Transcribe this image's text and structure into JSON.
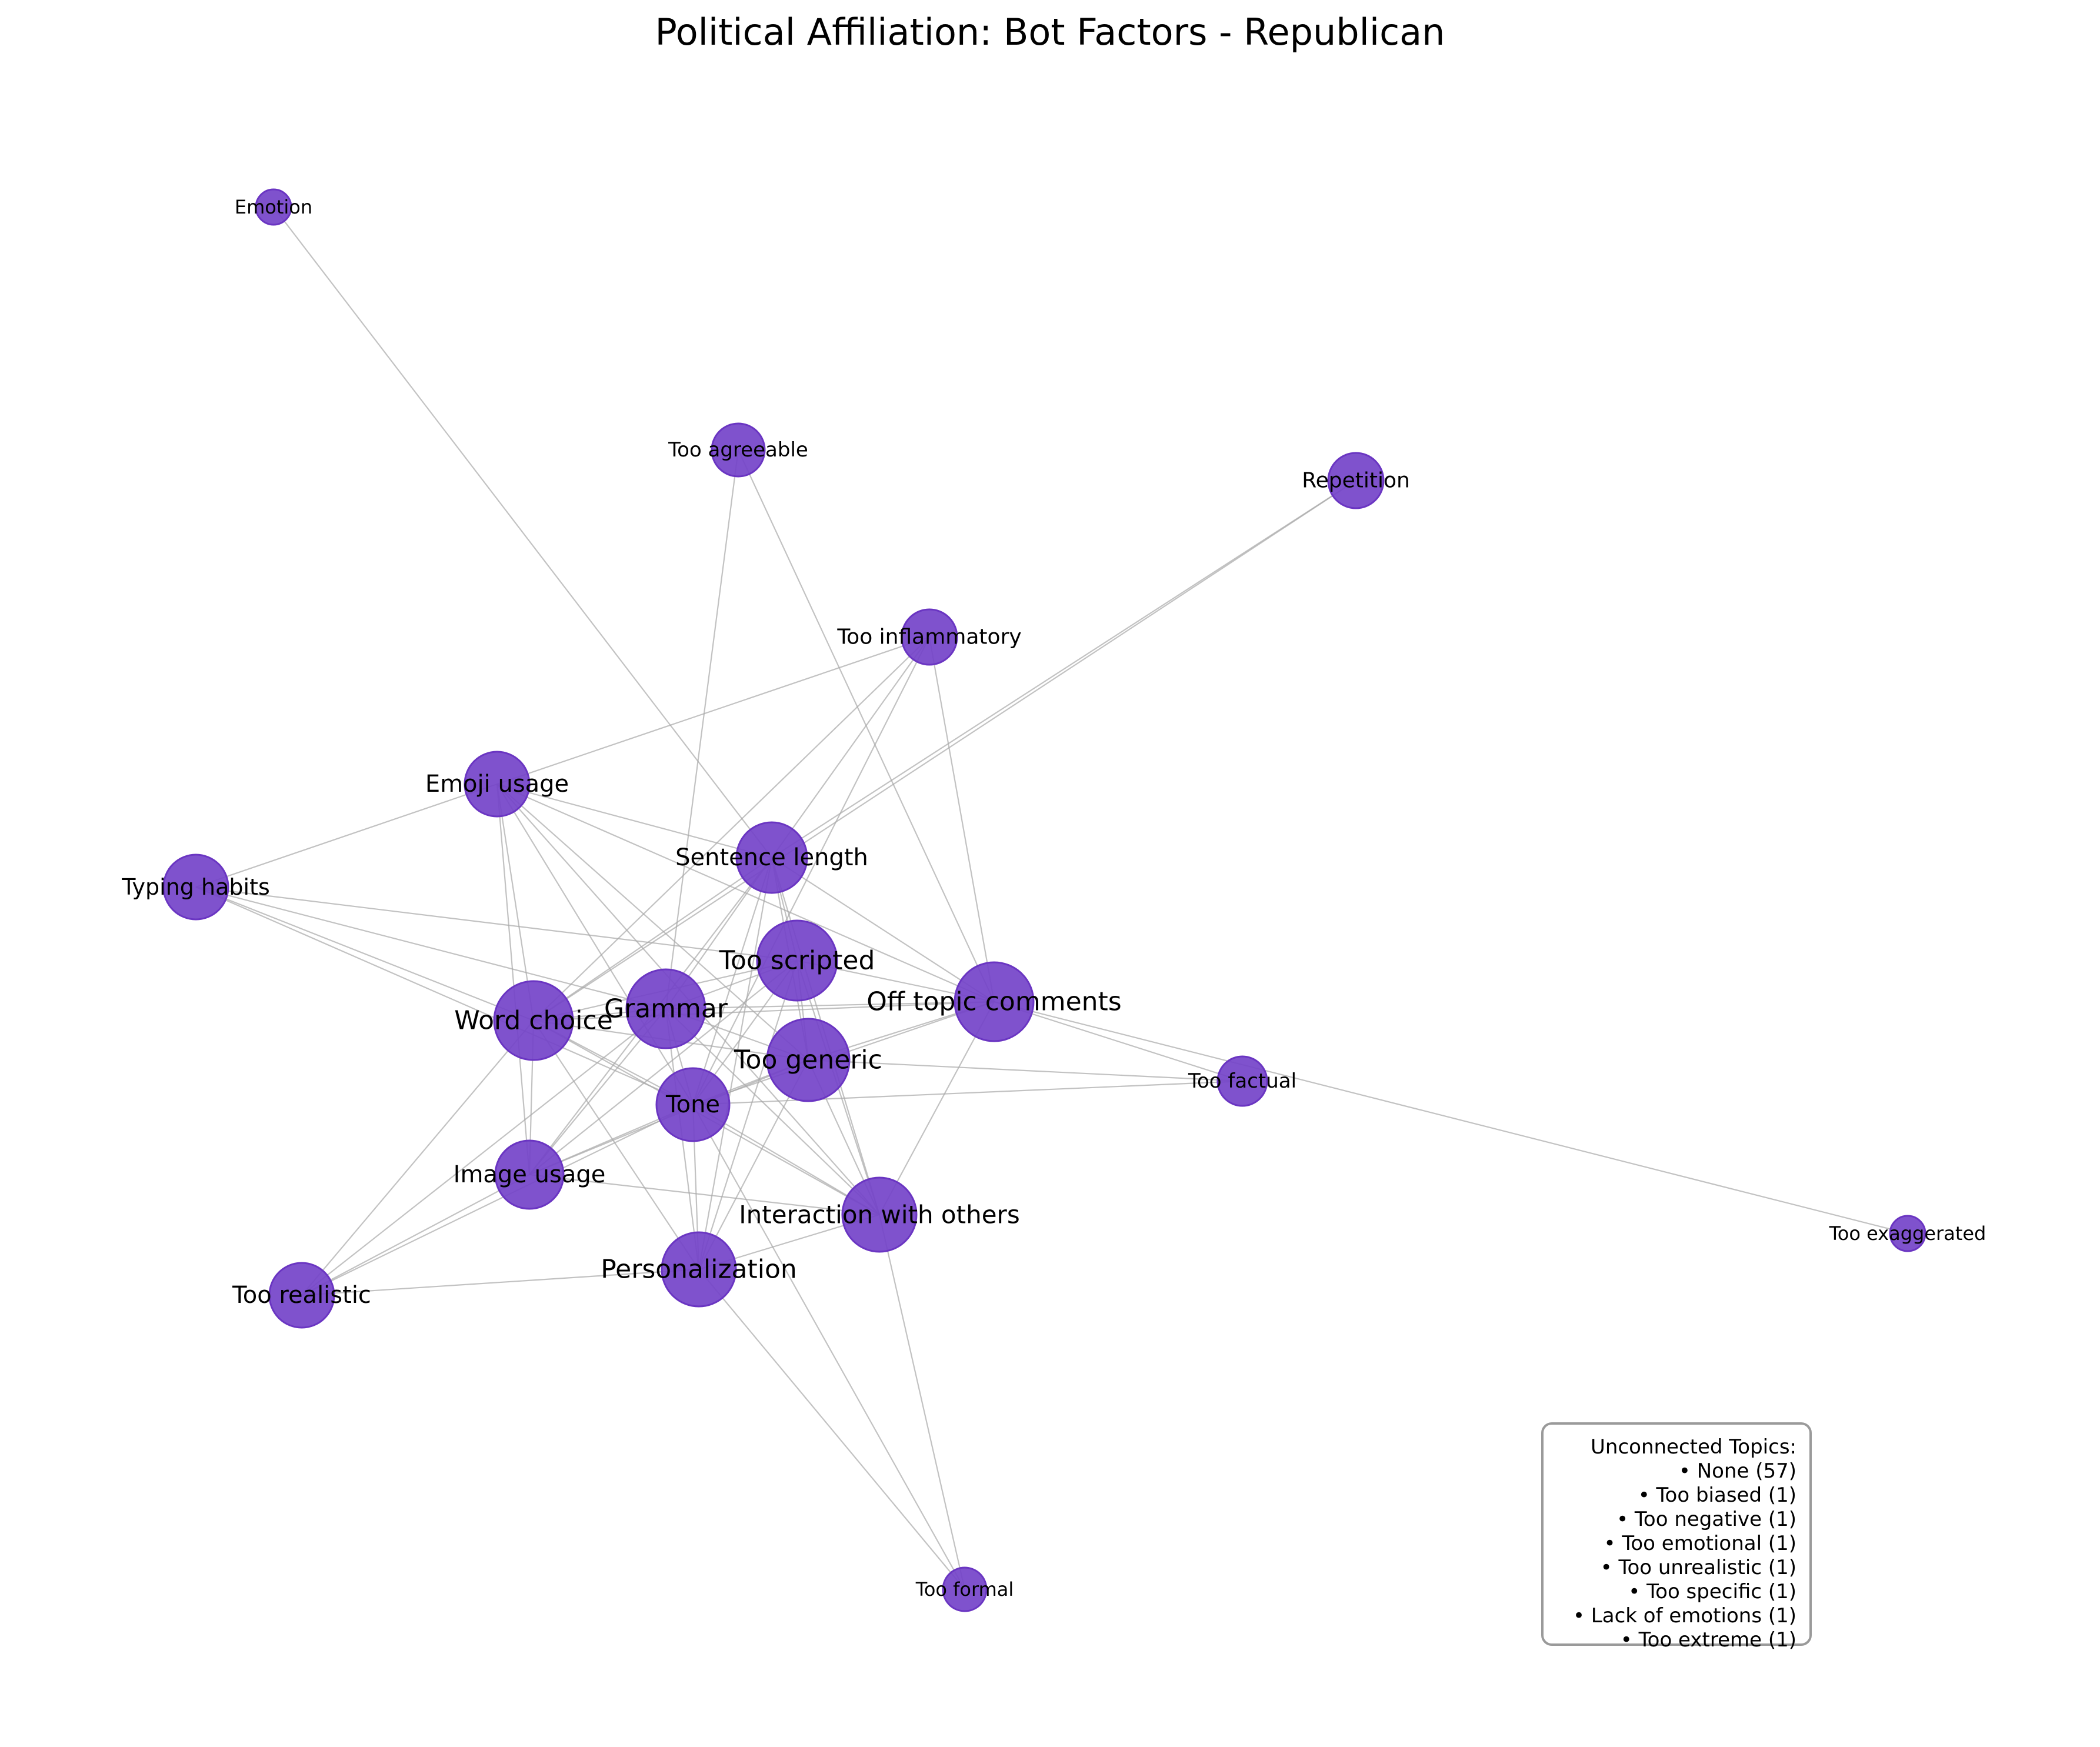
{
  "title": "Political Affiliation: Bot Factors - Republican",
  "node_color": "#7443c9",
  "node_stroke": "#6a35c2",
  "edge_color": "#a8a8a8",
  "nodes": [
    {
      "id": "emotion",
      "label": "Emotion"
    },
    {
      "id": "too_agreeable",
      "label": "Too agreeable"
    },
    {
      "id": "repetition",
      "label": "Repetition"
    },
    {
      "id": "too_inflammatory",
      "label": "Too inflammatory"
    },
    {
      "id": "emoji_usage",
      "label": "Emoji usage"
    },
    {
      "id": "sentence_length",
      "label": "Sentence length"
    },
    {
      "id": "typing_habits",
      "label": "Typing habits"
    },
    {
      "id": "too_scripted",
      "label": "Too scripted"
    },
    {
      "id": "grammar",
      "label": "Grammar"
    },
    {
      "id": "off_topic_comments",
      "label": "Off topic comments"
    },
    {
      "id": "word_choice",
      "label": "Word choice"
    },
    {
      "id": "too_generic",
      "label": "Too generic"
    },
    {
      "id": "too_factual",
      "label": "Too factual"
    },
    {
      "id": "tone",
      "label": "Tone"
    },
    {
      "id": "image_usage",
      "label": "Image usage"
    },
    {
      "id": "interaction_with_others",
      "label": "Interaction with others"
    },
    {
      "id": "too_exaggerated",
      "label": "Too exaggerated"
    },
    {
      "id": "personalization",
      "label": "Personalization"
    },
    {
      "id": "too_realistic",
      "label": "Too realistic"
    },
    {
      "id": "too_formal",
      "label": "Too formal"
    }
  ],
  "edges": [
    [
      "emotion",
      "sentence_length"
    ],
    [
      "too_agreeable",
      "grammar"
    ],
    [
      "too_agreeable",
      "off_topic_comments"
    ],
    [
      "repetition",
      "sentence_length"
    ],
    [
      "repetition",
      "word_choice"
    ],
    [
      "too_inflammatory",
      "emoji_usage"
    ],
    [
      "too_inflammatory",
      "sentence_length"
    ],
    [
      "too_inflammatory",
      "tone"
    ],
    [
      "too_inflammatory",
      "off_topic_comments"
    ],
    [
      "too_inflammatory",
      "word_choice"
    ],
    [
      "emoji_usage",
      "typing_habits"
    ],
    [
      "emoji_usage",
      "sentence_length"
    ],
    [
      "emoji_usage",
      "word_choice"
    ],
    [
      "emoji_usage",
      "image_usage"
    ],
    [
      "emoji_usage",
      "tone"
    ],
    [
      "emoji_usage",
      "too_generic"
    ],
    [
      "emoji_usage",
      "interaction_with_others"
    ],
    [
      "emoji_usage",
      "off_topic_comments"
    ],
    [
      "sentence_length",
      "too_scripted"
    ],
    [
      "sentence_length",
      "grammar"
    ],
    [
      "sentence_length",
      "too_generic"
    ],
    [
      "sentence_length",
      "tone"
    ],
    [
      "sentence_length",
      "word_choice"
    ],
    [
      "sentence_length",
      "off_topic_comments"
    ],
    [
      "sentence_length",
      "interaction_with_others"
    ],
    [
      "sentence_length",
      "image_usage"
    ],
    [
      "sentence_length",
      "personalization"
    ],
    [
      "typing_habits",
      "too_scripted"
    ],
    [
      "typing_habits",
      "word_choice"
    ],
    [
      "typing_habits",
      "tone"
    ],
    [
      "typing_habits",
      "grammar"
    ],
    [
      "too_scripted",
      "grammar"
    ],
    [
      "too_scripted",
      "off_topic_comments"
    ],
    [
      "too_scripted",
      "too_generic"
    ],
    [
      "too_scripted",
      "tone"
    ],
    [
      "too_scripted",
      "interaction_with_others"
    ],
    [
      "too_scripted",
      "word_choice"
    ],
    [
      "too_scripted",
      "personalization"
    ],
    [
      "too_scripted",
      "image_usage"
    ],
    [
      "grammar",
      "word_choice"
    ],
    [
      "grammar",
      "too_generic"
    ],
    [
      "grammar",
      "tone"
    ],
    [
      "grammar",
      "off_topic_comments"
    ],
    [
      "grammar",
      "interaction_with_others"
    ],
    [
      "grammar",
      "image_usage"
    ],
    [
      "grammar",
      "personalization"
    ],
    [
      "grammar",
      "too_realistic"
    ],
    [
      "off_topic_comments",
      "too_generic"
    ],
    [
      "off_topic_comments",
      "too_factual"
    ],
    [
      "off_topic_comments",
      "interaction_with_others"
    ],
    [
      "off_topic_comments",
      "tone"
    ],
    [
      "off_topic_comments",
      "word_choice"
    ],
    [
      "off_topic_comments",
      "too_exaggerated"
    ],
    [
      "word_choice",
      "tone"
    ],
    [
      "word_choice",
      "too_generic"
    ],
    [
      "word_choice",
      "image_usage"
    ],
    [
      "word_choice",
      "personalization"
    ],
    [
      "word_choice",
      "too_realistic"
    ],
    [
      "word_choice",
      "interaction_with_others"
    ],
    [
      "too_generic",
      "tone"
    ],
    [
      "too_generic",
      "too_factual"
    ],
    [
      "too_generic",
      "interaction_with_others"
    ],
    [
      "too_generic",
      "image_usage"
    ],
    [
      "too_generic",
      "personalization"
    ],
    [
      "tone",
      "image_usage"
    ],
    [
      "tone",
      "personalization"
    ],
    [
      "tone",
      "interaction_with_others"
    ],
    [
      "tone",
      "too_factual"
    ],
    [
      "tone",
      "too_realistic"
    ],
    [
      "tone",
      "too_formal"
    ],
    [
      "image_usage",
      "interaction_with_others"
    ],
    [
      "image_usage",
      "too_realistic"
    ],
    [
      "interaction_with_others",
      "personalization"
    ],
    [
      "interaction_with_others",
      "too_formal"
    ],
    [
      "personalization",
      "too_realistic"
    ],
    [
      "personalization",
      "too_formal"
    ]
  ],
  "legend": {
    "title": "Unconnected Topics:",
    "items": [
      "• None (57)",
      "• Too biased (1)",
      "• Too negative (1)",
      "• Too emotional (1)",
      "• Too unrealistic (1)",
      "• Too specific (1)",
      "• Lack of emotions (1)",
      "• Too extreme (1)"
    ]
  }
}
